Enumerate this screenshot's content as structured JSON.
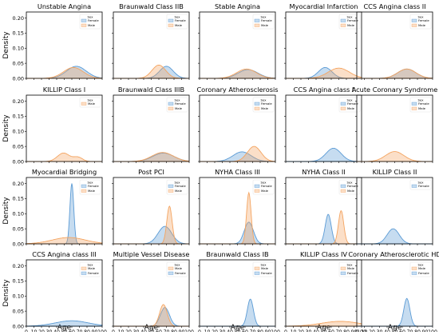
{
  "figure": {
    "ylabel": "Density",
    "xlabel": "Age",
    "legend_title": "Sex",
    "x_ticks": [
      0,
      10,
      20,
      30,
      40,
      50,
      60,
      70,
      80,
      90,
      100
    ],
    "y_ticks": [
      "0.00",
      "0.05",
      "0.10",
      "0.15",
      "0.20"
    ],
    "colors": {
      "Female": "#5b9bd5",
      "Male": "#f4a460"
    }
  },
  "chart_data": [
    {
      "type": "area",
      "title": "Unstable Angina",
      "xlim": [
        0,
        100
      ],
      "ylim": [
        0,
        0.22
      ],
      "legend": [
        "Female",
        "Male"
      ],
      "series": [
        {
          "name": "Female",
          "curves": [
            [
              66,
              13,
              0.04
            ]
          ]
        },
        {
          "name": "Male",
          "curves": [
            [
              62,
              13,
              0.036
            ]
          ]
        }
      ]
    },
    {
      "type": "area",
      "title": "Braunwald Class IIB",
      "xlim": [
        0,
        100
      ],
      "ylim": [
        0,
        0.22
      ],
      "legend": [
        "Female",
        "Male"
      ],
      "series": [
        {
          "name": "Female",
          "curves": [
            [
              70,
              9,
              0.04
            ]
          ]
        },
        {
          "name": "Male",
          "curves": [
            [
              60,
              9,
              0.044
            ]
          ]
        }
      ]
    },
    {
      "type": "area",
      "title": "Stable Angina",
      "xlim": [
        0,
        100
      ],
      "ylim": [
        0,
        0.22
      ],
      "legend": [
        "Female",
        "Male"
      ],
      "series": [
        {
          "name": "Female",
          "curves": [
            [
              64,
              13,
              0.029
            ]
          ]
        },
        {
          "name": "Male",
          "curves": [
            [
              62,
              13,
              0.031
            ]
          ]
        }
      ]
    },
    {
      "type": "area",
      "title": "Myocardial Infarction",
      "xlim": [
        0,
        100
      ],
      "ylim": [
        0,
        0.22
      ],
      "legend": [
        "Female",
        "Male"
      ],
      "series": [
        {
          "name": "Female",
          "curves": [
            [
              52,
              9,
              0.036
            ]
          ]
        },
        {
          "name": "Male",
          "curves": [
            [
              70,
              14,
              0.034
            ]
          ]
        }
      ]
    },
    {
      "type": "area",
      "title": "CCS Angina class II",
      "xlim": [
        0,
        100
      ],
      "ylim": [
        0,
        0.22
      ],
      "legend": [
        "Female",
        "Male"
      ],
      "series": [
        {
          "name": "Female",
          "curves": [
            [
              66,
              12,
              0.031
            ]
          ]
        },
        {
          "name": "Male",
          "curves": [
            [
              66,
              12,
              0.031
            ]
          ]
        }
      ]
    },
    {
      "type": "area",
      "title": "KILLIP Class I",
      "xlim": [
        0,
        100
      ],
      "ylim": [
        0,
        0.22
      ],
      "legend": [
        "Male"
      ],
      "series": [
        {
          "name": "Male",
          "curves": [
            [
              49,
              8,
              0.028
            ],
            [
              68,
              6,
              0.014
            ]
          ]
        }
      ]
    },
    {
      "type": "area",
      "title": "Braunwald Class IIIB",
      "xlim": [
        0,
        100
      ],
      "ylim": [
        0,
        0.22
      ],
      "legend": [
        "Female",
        "Male"
      ],
      "series": [
        {
          "name": "Female",
          "curves": [
            [
              66,
              14,
              0.028
            ]
          ]
        },
        {
          "name": "Male",
          "curves": [
            [
              65,
              14,
              0.03
            ]
          ]
        }
      ]
    },
    {
      "type": "area",
      "title": "Coronary Atherosclerosis",
      "xlim": [
        0,
        100
      ],
      "ylim": [
        0,
        0.22
      ],
      "legend": [
        "Female",
        "Male"
      ],
      "series": [
        {
          "name": "Female",
          "curves": [
            [
              56,
              12,
              0.032
            ]
          ]
        },
        {
          "name": "Male",
          "curves": [
            [
              72,
              9,
              0.05
            ]
          ]
        }
      ]
    },
    {
      "type": "area",
      "title": "CCS Angina class I",
      "xlim": [
        0,
        100
      ],
      "ylim": [
        0,
        0.22
      ],
      "legend": [
        "Female",
        "Male"
      ],
      "series": [
        {
          "name": "Female",
          "curves": [
            [
              63,
              10,
              0.044
            ]
          ]
        }
      ]
    },
    {
      "type": "area",
      "title": "Acute Coronary Syndrome",
      "xlim": [
        0,
        100
      ],
      "ylim": [
        0,
        0.22
      ],
      "legend": [
        "Female",
        "Male"
      ],
      "series": [
        {
          "name": "Male",
          "curves": [
            [
              50,
              12,
              0.033
            ]
          ]
        }
      ]
    },
    {
      "type": "area",
      "title": "Myocardial Bridging",
      "xlim": [
        0,
        100
      ],
      "ylim": [
        0,
        0.22
      ],
      "legend": [
        "Female",
        "Male"
      ],
      "series": [
        {
          "name": "Female",
          "curves": [
            [
              60,
              2.5,
              0.2
            ]
          ]
        },
        {
          "name": "Male",
          "curves": [
            [
              56,
              22,
              0.021
            ]
          ]
        }
      ]
    },
    {
      "type": "area",
      "title": "Post PCI",
      "xlim": [
        0,
        100
      ],
      "ylim": [
        0,
        0.22
      ],
      "legend": [
        "Female",
        "Male"
      ],
      "series": [
        {
          "name": "Female",
          "curves": [
            [
              68,
              9,
              0.058
            ]
          ]
        },
        {
          "name": "Male",
          "curves": [
            [
              74,
              3.5,
              0.125
            ]
          ]
        }
      ]
    },
    {
      "type": "area",
      "title": "NYHA Class III",
      "xlim": [
        0,
        100
      ],
      "ylim": [
        0,
        0.22
      ],
      "legend": [
        "Female",
        "Male"
      ],
      "series": [
        {
          "name": "Female",
          "curves": [
            [
              65,
              6,
              0.072
            ]
          ]
        },
        {
          "name": "Male",
          "curves": [
            [
              65,
              3,
              0.17
            ]
          ]
        }
      ]
    },
    {
      "type": "area",
      "title": "NYHA Class II",
      "xlim": [
        0,
        100
      ],
      "ylim": [
        0,
        0.22
      ],
      "legend": [
        "Female",
        "Male"
      ],
      "series": [
        {
          "name": "Female",
          "curves": [
            [
              56,
              4,
              0.098
            ]
          ]
        },
        {
          "name": "Male",
          "curves": [
            [
              73,
              3.5,
              0.11
            ]
          ]
        }
      ]
    },
    {
      "type": "area",
      "title": "KILLIP Class II",
      "xlim": [
        0,
        100
      ],
      "ylim": [
        0,
        0.22
      ],
      "legend": [
        "Female"
      ],
      "series": [
        {
          "name": "Female",
          "curves": [
            [
              48,
              8,
              0.05
            ]
          ]
        }
      ]
    },
    {
      "type": "area",
      "title": "CCS Angina class III",
      "xlim": [
        0,
        100
      ],
      "ylim": [
        0,
        0.22
      ],
      "legend": [
        "Male",
        "Female"
      ],
      "series": [
        {
          "name": "Female",
          "curves": [
            [
              60,
              22,
              0.018
            ]
          ]
        }
      ]
    },
    {
      "type": "area",
      "title": "Multiple Vessel Disease",
      "xlim": [
        0,
        100
      ],
      "ylim": [
        0,
        0.22
      ],
      "legend": [
        "Male",
        "Female"
      ],
      "series": [
        {
          "name": "Female",
          "curves": [
            [
              68,
              6,
              0.062
            ]
          ]
        },
        {
          "name": "Male",
          "curves": [
            [
              66,
              5,
              0.072
            ]
          ]
        }
      ]
    },
    {
      "type": "area",
      "title": "Braunwald Class IB",
      "xlim": [
        0,
        100
      ],
      "ylim": [
        0,
        0.22
      ],
      "legend": [
        "Male",
        "Female"
      ],
      "series": [
        {
          "name": "Female",
          "curves": [
            [
              67,
              4,
              0.09
            ]
          ]
        }
      ]
    },
    {
      "type": "area",
      "title": "KILLIP Class IV",
      "xlim": [
        0,
        100
      ],
      "ylim": [
        0,
        0.22
      ],
      "legend": [
        "Male",
        "Female"
      ],
      "series": [
        {
          "name": "Male",
          "curves": [
            [
              72,
              25,
              0.016
            ]
          ]
        }
      ]
    },
    {
      "type": "area",
      "title": "Coronary Atherosclerotic HD",
      "xlim": [
        0,
        100
      ],
      "ylim": [
        0,
        0.22
      ],
      "legend": [
        "Male",
        "Female"
      ],
      "series": [
        {
          "name": "Female",
          "curves": [
            [
              66,
              4,
              0.092
            ]
          ]
        }
      ]
    }
  ]
}
